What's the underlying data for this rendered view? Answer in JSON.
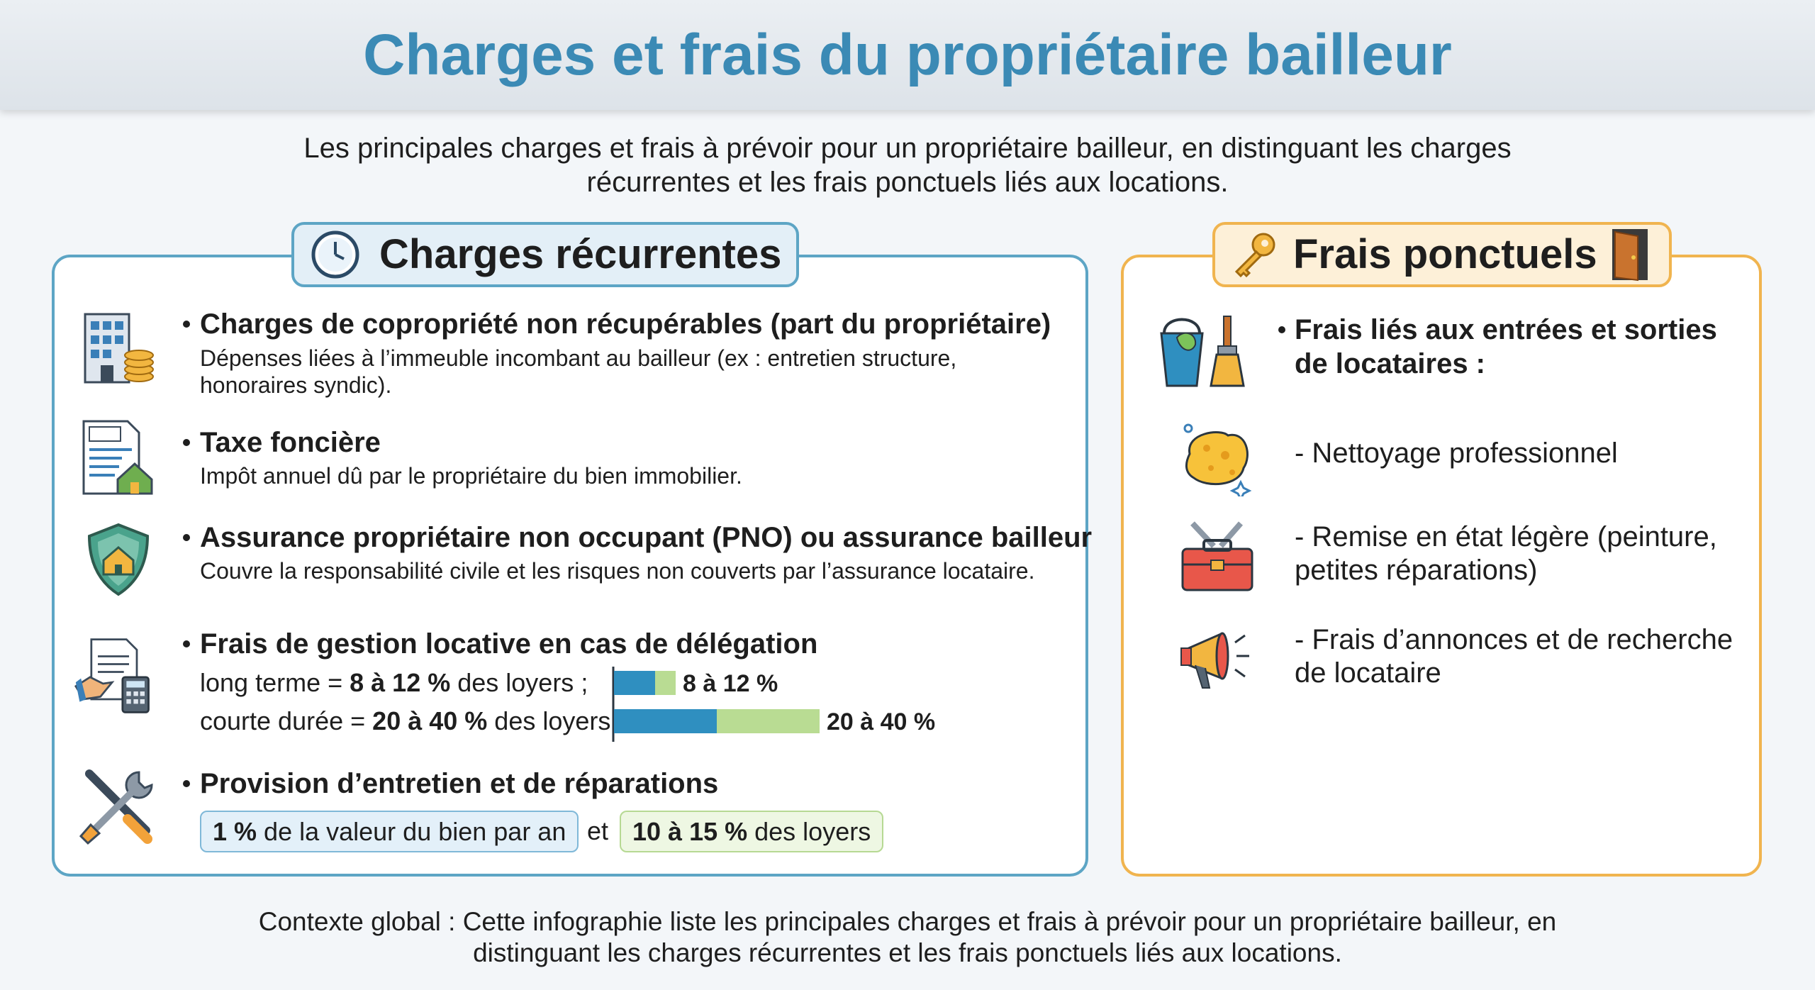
{
  "header": {
    "title": "Charges et frais du propriétaire bailleur"
  },
  "intro": "Les principales charges et frais à prévoir pour un propriétaire bailleur, en distinguant les charges récurrentes et les frais ponctuels liés aux locations.",
  "recurrent": {
    "title": "Charges récurrentes",
    "items": [
      {
        "title": "Charges de copropriété non récupérables (part du propriétaire)",
        "description": "Dépenses liées à l’immeuble incombant au bailleur (ex : entretien structure, honoraires syndic)."
      },
      {
        "title": "Taxe foncière",
        "description": "Impôt annuel dû par le propriétaire du bien immobilier."
      },
      {
        "title": "Assurance propriétaire non occupant (PNO) ou assurance bailleur",
        "description": "Couvre la responsabilité civile et les risques non couverts par l’assurance locataire."
      },
      {
        "title": "Frais de gestion locative en cas de délégation",
        "rows": [
          {
            "parts": [
              "long terme = ",
              "8 à 12 %",
              " des loyers ;"
            ],
            "bar": {
              "low": 8,
              "high": 12,
              "label": "8 à 12 %"
            }
          },
          {
            "parts": [
              "courte durée = ",
              "20 à 40 %",
              " des loyers"
            ],
            "bar": {
              "low": 20,
              "high": 40,
              "label": "20 à 40 %"
            }
          }
        ]
      },
      {
        "title": "Provision d’entretien et de réparations",
        "options": [
          {
            "parts": [
              "1 %",
              " de la valeur du bien par an"
            ]
          },
          {
            "parts": [
              "10 à 15 %",
              " des loyers"
            ]
          }
        ],
        "connector": "et"
      }
    ]
  },
  "punctual": {
    "title": "Frais ponctuels",
    "heading": "Frais liés aux entrées et sorties de locataires :",
    "items": [
      "- Nettoyage professionnel",
      "- Remise en état légère (peinture, petites réparations)",
      "- Frais d’annonces et de recherche de locataire"
    ]
  },
  "footer": "Contexte global : Cette infographie liste les principales charges et frais à prévoir pour un propriétaire bailleur, en distinguant les charges récurrentes et les frais ponctuels liés aux locations."
}
